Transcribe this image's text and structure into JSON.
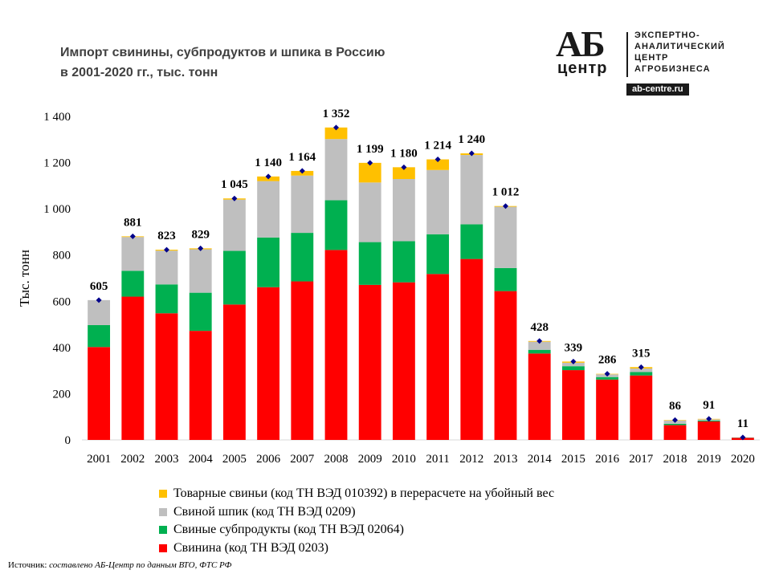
{
  "title_line1": "Импорт свинины, субпродуктов  и шпика в Россию",
  "title_line2": "в 2001-2020 гг., тыс. тонн",
  "logo": {
    "mark_top": "АБ",
    "mark_bottom": "центр",
    "line1": "ЭКСПЕРТНО-",
    "line2": "АНАЛИТИЧЕСКИЙ",
    "line3": "ЦЕНТР",
    "line4": "АГРОБИЗНЕСА",
    "url": "ab-centre.ru"
  },
  "source_label": "Источник:",
  "source_text": "составлено АБ-Центр по данным ВТО, ФТС РФ",
  "legend": [
    {
      "label": "Товарные свиньи (код ТН ВЭД 010392)  в перерасчете на убойный вес",
      "color": "#FFC000"
    },
    {
      "label": "Свиной шпик (код ТН ВЭД 0209)",
      "color": "#BFBFBF"
    },
    {
      "label": "Свиные субпродукты (код ТН ВЭД 02064)",
      "color": "#00B050"
    },
    {
      "label": "Свинина (код ТН ВЭД 0203)",
      "color": "#FF0000"
    }
  ],
  "chart_data": {
    "type": "bar",
    "stacked": true,
    "ylabel": "Тыс. тонн",
    "ylim": [
      0,
      1400
    ],
    "yticks": [
      0,
      200,
      400,
      600,
      800,
      1000,
      1200,
      1400
    ],
    "ytick_labels": [
      "0",
      "200",
      "400",
      "600",
      "800",
      "1 000",
      "1 200",
      "1 400"
    ],
    "categories": [
      "2001",
      "2002",
      "2003",
      "2004",
      "2005",
      "2006",
      "2007",
      "2008",
      "2009",
      "2010",
      "2011",
      "2012",
      "2013",
      "2014",
      "2015",
      "2016",
      "2017",
      "2018",
      "2019",
      "2020"
    ],
    "series": [
      {
        "name": "Свинина (код ТН ВЭД 0203)",
        "color": "#FF0000",
        "values": [
          402,
          620,
          548,
          472,
          586,
          661,
          686,
          822,
          671,
          682,
          718,
          783,
          644,
          374,
          302,
          261,
          279,
          64,
          80,
          9
        ]
      },
      {
        "name": "Свиные субпродукты (код ТН ВЭД 02064)",
        "color": "#00B050",
        "values": [
          95,
          112,
          125,
          165,
          232,
          215,
          210,
          215,
          185,
          178,
          172,
          150,
          100,
          16,
          17,
          11,
          15,
          6,
          4,
          1
        ]
      },
      {
        "name": "Свиной шпик (код ТН ВЭД 0209)",
        "color": "#BFBFBF",
        "values": [
          108,
          146,
          146,
          188,
          222,
          244,
          248,
          265,
          258,
          269,
          278,
          300,
          265,
          35,
          15,
          12,
          15,
          14,
          5,
          1
        ]
      },
      {
        "name": "Товарные свиньи (код ТН ВЭД 010392)  в перерасчете на убойный вес",
        "color": "#FFC000",
        "values": [
          0,
          3,
          4,
          4,
          5,
          20,
          20,
          50,
          85,
          51,
          46,
          7,
          3,
          3,
          5,
          2,
          6,
          2,
          2,
          0
        ]
      }
    ],
    "totals": [
      605,
      881,
      823,
      829,
      1045,
      1140,
      1164,
      1352,
      1199,
      1180,
      1214,
      1240,
      1012,
      428,
      339,
      286,
      315,
      86,
      91,
      11
    ],
    "total_labels": [
      "605",
      "881",
      "823",
      "829",
      "1 045",
      "1 140",
      "1 164",
      "1 352",
      "1 199",
      "1 180",
      "1 214",
      "1 240",
      "1 012",
      "428",
      "339",
      "286",
      "315",
      "86",
      "91",
      "11"
    ],
    "total_marker_color": "#00008B"
  }
}
